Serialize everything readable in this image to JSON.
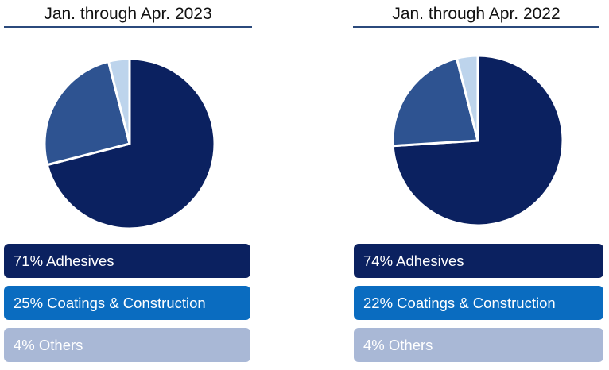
{
  "chart_data": [
    {
      "type": "pie",
      "title": "Jan. through Apr. 2023",
      "series": [
        {
          "name": "Adhesives",
          "value": 71,
          "color": "#0b2160"
        },
        {
          "name": "Coatings & Construction",
          "value": 25,
          "color": "#2e5391"
        },
        {
          "name": "Others",
          "value": 4,
          "color": "#bdd4ec"
        }
      ],
      "legend": [
        {
          "label": "71% Adhesives",
          "color": "#0b2160"
        },
        {
          "label": "25% Coatings & Construction",
          "color": "#0a6cc0"
        },
        {
          "label": "4% Others",
          "color": "#a9b8d6"
        }
      ]
    },
    {
      "type": "pie",
      "title": "Jan. through Apr. 2022",
      "series": [
        {
          "name": "Adhesives",
          "value": 74,
          "color": "#0b2160"
        },
        {
          "name": "Coatings & Construction",
          "value": 22,
          "color": "#2e5391"
        },
        {
          "name": "Others",
          "value": 4,
          "color": "#bdd4ec"
        }
      ],
      "legend": [
        {
          "label": "74% Adhesives",
          "color": "#0b2160"
        },
        {
          "label": "22% Coatings & Construction",
          "color": "#0a6cc0"
        },
        {
          "label": "4% Others",
          "color": "#a9b8d6"
        }
      ]
    }
  ]
}
